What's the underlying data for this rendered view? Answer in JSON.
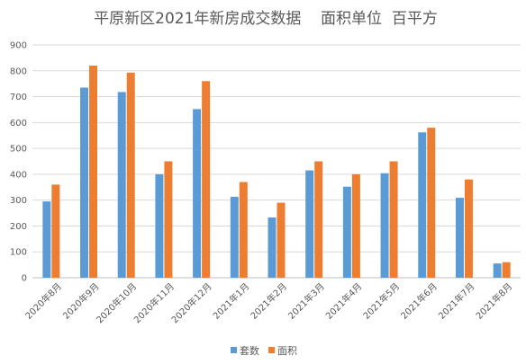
{
  "chart_data": {
    "type": "bar",
    "title": "平原新区2021年新房成交数据    面积单位  百平方",
    "categories": [
      "2020年8月",
      "2020年9月",
      "2020年10月",
      "2020年11月",
      "2020年12月",
      "2021年1月",
      "2021年2月",
      "2021年3月",
      "2021年4月",
      "2021年5月",
      "2021年6月",
      "2021年7月",
      "2021年8月"
    ],
    "series": [
      {
        "name": "套数",
        "color": "#5B9BD5",
        "values": [
          295,
          735,
          718,
          400,
          652,
          313,
          233,
          415,
          352,
          404,
          562,
          309,
          55
        ]
      },
      {
        "name": "面积",
        "color": "#ED7D31",
        "values": [
          360,
          820,
          793,
          450,
          760,
          370,
          290,
          450,
          400,
          450,
          580,
          380,
          60
        ]
      }
    ],
    "ylim": [
      0,
      900
    ],
    "yticks": [
      "0",
      "100",
      "200",
      "300",
      "400",
      "500",
      "600",
      "700",
      "800",
      "900"
    ],
    "grid": true,
    "legend": "bottom"
  }
}
